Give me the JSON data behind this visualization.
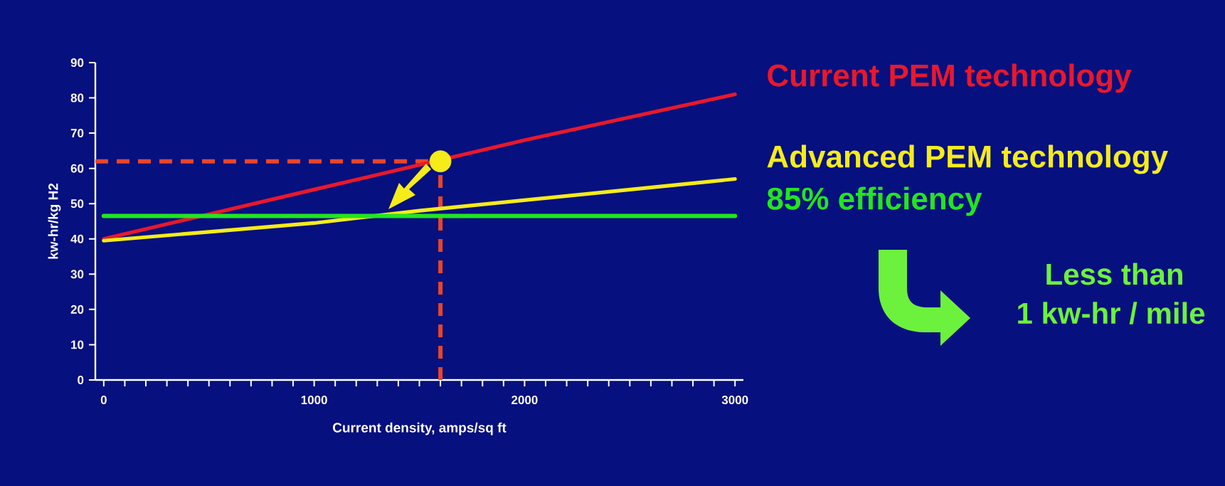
{
  "chart_data": {
    "type": "line",
    "xlabel": "Current density, amps/sq ft",
    "ylabel": "kw-hr/kg H2",
    "xlim": [
      -40,
      3040
    ],
    "ylim": [
      0,
      90
    ],
    "xticks": [
      0,
      {
        "value": 100,
        "label": null
      },
      {
        "value": 200,
        "label": null
      },
      {
        "value": 300,
        "label": null
      },
      {
        "value": 400,
        "label": null
      },
      {
        "value": 500,
        "label": null
      },
      {
        "value": 600,
        "label": null
      },
      {
        "value": 700,
        "label": null
      },
      {
        "value": 800,
        "label": null
      },
      {
        "value": 900,
        "label": null
      },
      1000,
      {
        "value": 1100,
        "label": null
      },
      {
        "value": 1200,
        "label": null
      },
      {
        "value": 1300,
        "label": null
      },
      {
        "value": 1400,
        "label": null
      },
      {
        "value": 1500,
        "label": null
      },
      {
        "value": 1600,
        "label": null
      },
      {
        "value": 1700,
        "label": null
      },
      {
        "value": 1800,
        "label": null
      },
      {
        "value": 1900,
        "label": null
      },
      2000,
      {
        "value": 2100,
        "label": null
      },
      {
        "value": 2200,
        "label": null
      },
      {
        "value": 2300,
        "label": null
      },
      {
        "value": 2400,
        "label": null
      },
      {
        "value": 2500,
        "label": null
      },
      {
        "value": 2600,
        "label": null
      },
      {
        "value": 2700,
        "label": null
      },
      {
        "value": 2800,
        "label": null
      },
      {
        "value": 2900,
        "label": null
      },
      3000
    ],
    "yticks": [
      0,
      10,
      20,
      30,
      40,
      50,
      60,
      70,
      80,
      90
    ],
    "x": [
      0,
      500,
      1000,
      1500,
      2000,
      2500,
      3000
    ],
    "series": [
      {
        "name": "Current PEM technology",
        "color": "#e8182c",
        "values": [
          40,
          47,
          54,
          61,
          68,
          74.5,
          81
        ]
      },
      {
        "name": "Advanced PEM technology",
        "color": "#f5ec1a",
        "values": [
          39.5,
          42,
          44.5,
          48,
          51,
          54,
          57
        ]
      },
      {
        "name": "85% efficiency",
        "color": "#22e61e",
        "x": [
          0,
          3000
        ],
        "values": [
          46.5,
          46.5
        ]
      },
      {
        "type": "scatter",
        "color": "#f5ec1a",
        "marker": "circle",
        "x": [
          1600
        ],
        "values": [
          62
        ]
      }
    ],
    "ref_lines": [
      {
        "axis": "y",
        "value": 62,
        "color": "#e8452a",
        "line_style": "dashed"
      },
      {
        "axis": "x",
        "value": 1600,
        "color": "#e8452a",
        "line_style": "dashed"
      }
    ],
    "annotations": [
      "Less than",
      "1 kw-hr / mile"
    ],
    "legend": "right",
    "line_style": "solid"
  }
}
